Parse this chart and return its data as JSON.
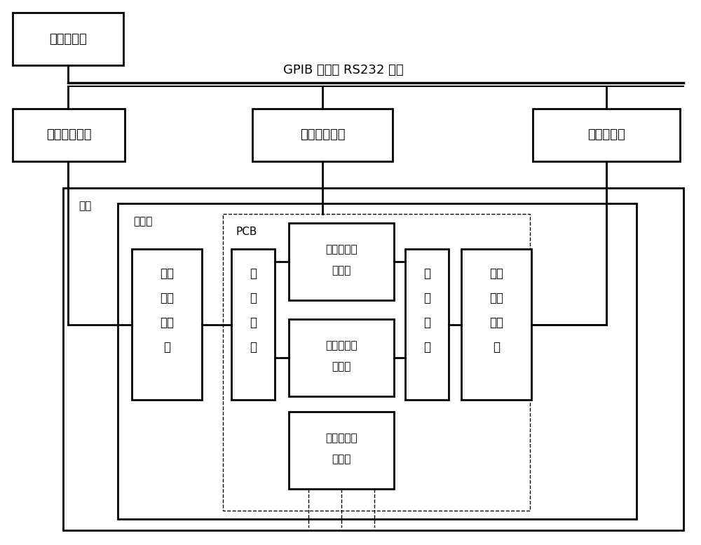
{
  "bg_color": "#ffffff",
  "bus_label": "GPIB 总线或 RS232 总线",
  "computer_label": "工控计算机",
  "power_supply_label": "线性直流电源",
  "temp_monitor_label": "温度监控单元",
  "voltage_collector_label": "电压采集器",
  "oil_tank_label": "油槽",
  "test_box_label": "测试盒",
  "pcb_label": "PCB",
  "power_connector_label": "电源\n接口\n连接\n器",
  "power_interface_label": "电\n源\n接\n口",
  "fb_circuit_label": "反馈放大待\n测电路",
  "signal_interface_label": "信\n号\n接\n口",
  "signal_connector_label": "信号\n接口\n连接\n器"
}
